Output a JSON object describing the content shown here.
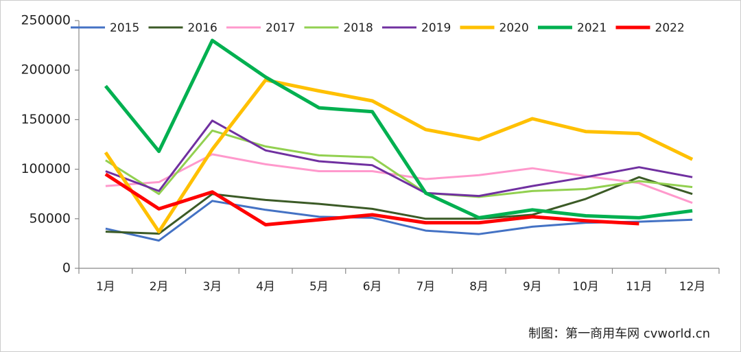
{
  "chart_data": {
    "type": "line",
    "categories": [
      "1月",
      "2月",
      "3月",
      "4月",
      "5月",
      "6月",
      "7月",
      "8月",
      "9月",
      "10月",
      "11月",
      "12月"
    ],
    "series": [
      {
        "name": "2015",
        "color": "#4472c4",
        "values": [
          40000,
          28000,
          68000,
          59000,
          52000,
          51000,
          38000,
          34500,
          42000,
          46000,
          47000,
          49000
        ]
      },
      {
        "name": "2016",
        "color": "#3b5a26",
        "values": [
          37000,
          35000,
          75000,
          69000,
          65000,
          60000,
          50000,
          50000,
          54000,
          70000,
          92000,
          75000
        ]
      },
      {
        "name": "2017",
        "color": "#ff99cc",
        "values": [
          83000,
          87000,
          115000,
          105000,
          98000,
          98000,
          90000,
          94000,
          101000,
          93000,
          86000,
          66000
        ]
      },
      {
        "name": "2018",
        "color": "#92d050",
        "values": [
          109000,
          75000,
          139000,
          123000,
          114000,
          112000,
          76000,
          72000,
          78000,
          80000,
          88000,
          82000
        ]
      },
      {
        "name": "2019",
        "color": "#7030a0",
        "values": [
          98000,
          78000,
          149000,
          119000,
          108000,
          104000,
          76000,
          73000,
          83000,
          92000,
          102000,
          92000
        ]
      },
      {
        "name": "2020",
        "color": "#ffc000",
        "values": [
          117000,
          37000,
          120000,
          190000,
          179000,
          169000,
          140000,
          130000,
          151000,
          138000,
          136000,
          110000
        ]
      },
      {
        "name": "2021",
        "color": "#00b050",
        "values": [
          184000,
          118000,
          230000,
          193000,
          162000,
          158000,
          76000,
          51000,
          59000,
          53000,
          51000,
          58000
        ]
      },
      {
        "name": "2022",
        "color": "#ff0000",
        "values": [
          95000,
          60000,
          77000,
          44000,
          49000,
          54000,
          46000,
          46000,
          52000,
          48000,
          45000,
          null
        ]
      }
    ],
    "ylim": [
      0,
      250000
    ],
    "yticks": [
      0,
      50000,
      100000,
      150000,
      200000,
      250000
    ],
    "legend": "top",
    "source": "制图：第一商用车网 cvworld.cn"
  }
}
